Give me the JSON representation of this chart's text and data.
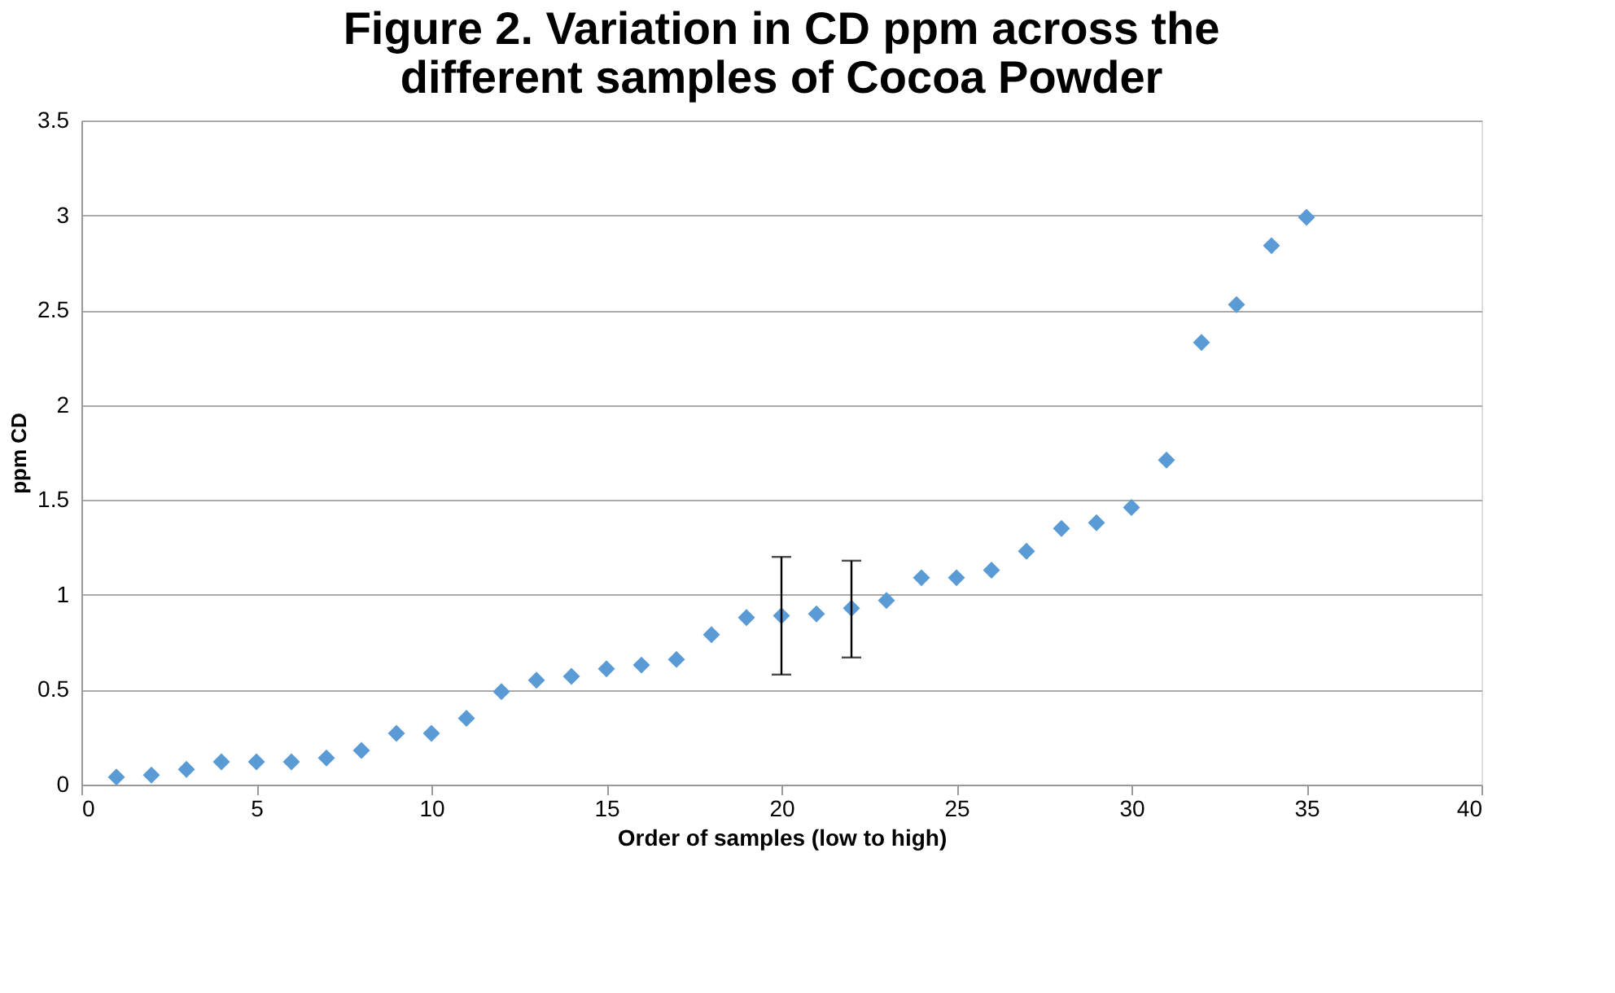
{
  "chart_data": {
    "type": "scatter",
    "title": "Figure 2. Variation in CD ppm across the different samples of Cocoa Powder",
    "xlabel": "Order of samples (low to high)",
    "ylabel": "ppm CD",
    "x": [
      1,
      2,
      3,
      4,
      5,
      6,
      7,
      8,
      9,
      10,
      11,
      12,
      13,
      14,
      15,
      16,
      17,
      18,
      19,
      20,
      21,
      22,
      23,
      24,
      25,
      26,
      27,
      28,
      29,
      30,
      31,
      32,
      33,
      34,
      35
    ],
    "series": [
      {
        "color": "#5b9bd5",
        "values": [
          0.04,
          0.05,
          0.08,
          0.12,
          0.12,
          0.12,
          0.14,
          0.18,
          0.27,
          0.27,
          0.35,
          0.49,
          0.55,
          0.57,
          0.61,
          0.63,
          0.66,
          0.79,
          0.88,
          0.89,
          0.9,
          0.93,
          0.97,
          1.09,
          1.09,
          1.13,
          1.23,
          1.35,
          1.38,
          1.46,
          1.71,
          2.33,
          2.53,
          2.84,
          2.99
        ],
        "errors": [
          null,
          null,
          null,
          null,
          null,
          null,
          null,
          null,
          null,
          null,
          null,
          null,
          null,
          null,
          null,
          null,
          null,
          null,
          null,
          [
            0.58,
            1.2
          ],
          null,
          [
            0.67,
            1.18
          ],
          null,
          null,
          null,
          null,
          null,
          null,
          null,
          null,
          null,
          null,
          null,
          null,
          null
        ]
      }
    ],
    "marker": "diamond",
    "grid": "y",
    "xlim": [
      0,
      40
    ],
    "xticks": [
      0,
      5,
      10,
      15,
      20,
      25,
      30,
      35,
      40
    ],
    "ylim": [
      0,
      3.5
    ],
    "yticks": [
      0,
      0.5,
      1,
      1.5,
      2,
      2.5,
      3,
      3.5
    ]
  }
}
